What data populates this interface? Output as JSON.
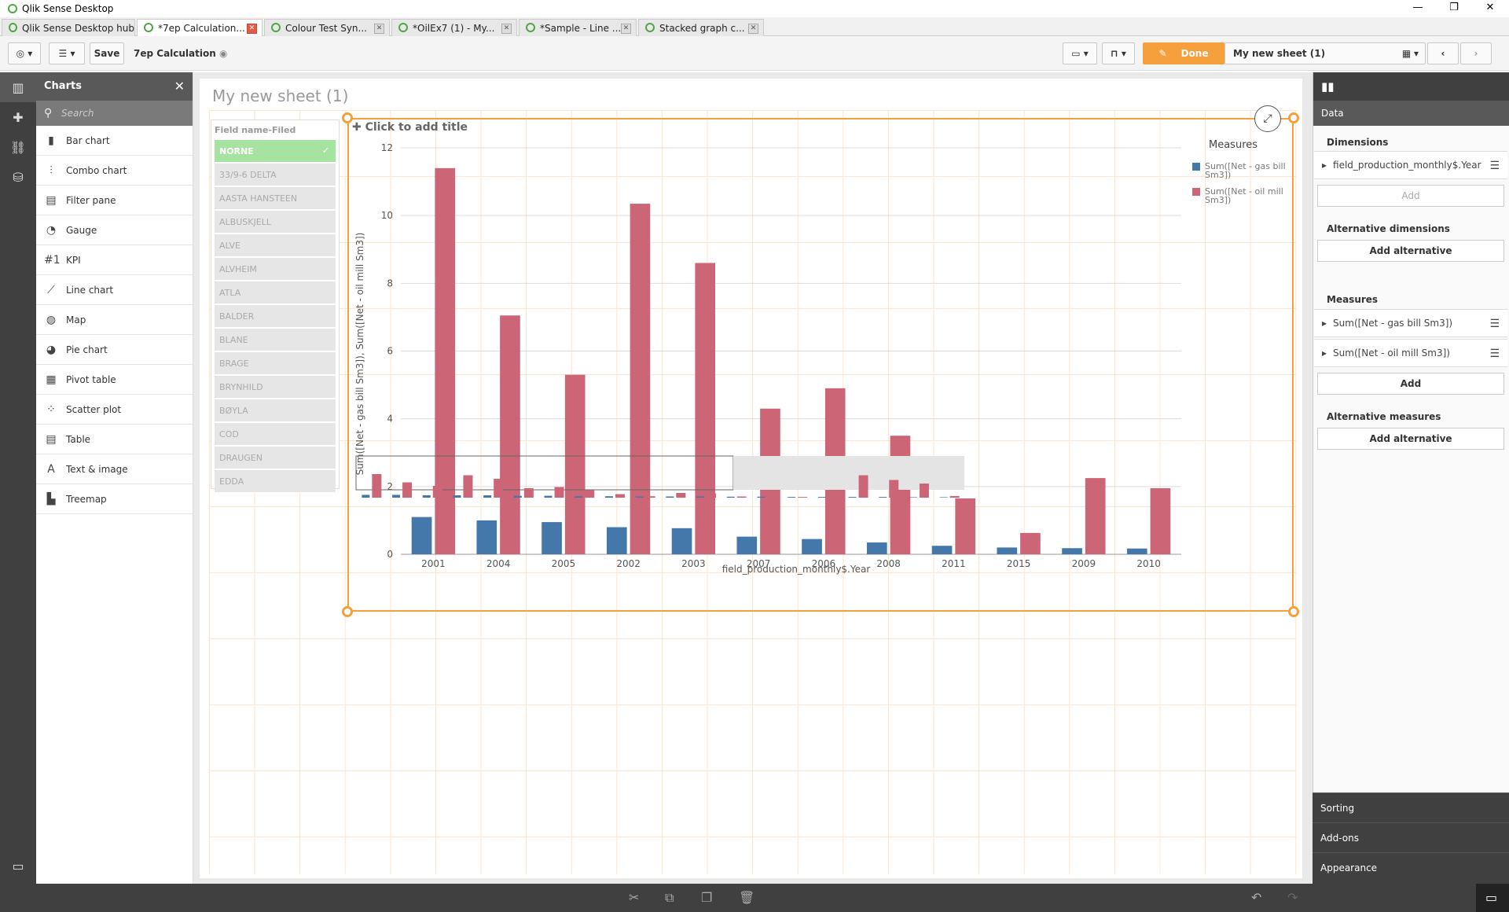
{
  "window": {
    "title": "Qlik Sense Desktop",
    "minimize": "—",
    "maximize": "❐",
    "close": "✕"
  },
  "tabs": [
    {
      "label": "Qlik Sense Desktop hub",
      "close": "✕"
    },
    {
      "label": "*7ep Calculation...",
      "close": "✕"
    },
    {
      "label": "Colour Test Syn...",
      "close": "✕"
    },
    {
      "label": "*OilEx7 (1) - My...",
      "close": "✕"
    },
    {
      "label": "*Sample - Line ...",
      "close": "✕"
    },
    {
      "label": "Stacked graph c...",
      "close": "✕"
    }
  ],
  "toolbar": {
    "save_label": "Save",
    "app_name": "7ep Calculation",
    "done_label": "Done",
    "sheet_name": "My new sheet (1)"
  },
  "assets": {
    "title": "Charts",
    "search_placeholder": "Search",
    "items": [
      {
        "label": "Bar chart",
        "icon": "bar-chart-icon"
      },
      {
        "label": "Combo chart",
        "icon": "combo-chart-icon"
      },
      {
        "label": "Filter pane",
        "icon": "filter-pane-icon"
      },
      {
        "label": "Gauge",
        "icon": "gauge-icon"
      },
      {
        "label": "KPI",
        "icon": "kpi-icon"
      },
      {
        "label": "Line chart",
        "icon": "line-chart-icon"
      },
      {
        "label": "Map",
        "icon": "map-icon"
      },
      {
        "label": "Pie chart",
        "icon": "pie-chart-icon"
      },
      {
        "label": "Pivot table",
        "icon": "pivot-table-icon"
      },
      {
        "label": "Scatter plot",
        "icon": "scatter-plot-icon"
      },
      {
        "label": "Table",
        "icon": "table-icon"
      },
      {
        "label": "Text & image",
        "icon": "text-image-icon"
      },
      {
        "label": "Treemap",
        "icon": "treemap-icon"
      }
    ]
  },
  "sheet": {
    "title": "My new sheet (1)"
  },
  "filter_pane": {
    "header": "Field name-Filed",
    "items": [
      "NORNE",
      "33/9-6 DELTA",
      "AASTA HANSTEEN",
      "ALBUSKJELL",
      "ALVE",
      "ALVHEIM",
      "ATLA",
      "BALDER",
      "BLANE",
      "BRAGE",
      "BRYNHILD",
      "BØYLA",
      "COD",
      "DRAUGEN",
      "EDDA"
    ],
    "selected": "NORNE"
  },
  "chart_placeholder_title": "Click to add title",
  "chart_data": {
    "type": "bar",
    "categories": [
      "2001",
      "2004",
      "2005",
      "2002",
      "2003",
      "2007",
      "2006",
      "2008",
      "2011",
      "2015",
      "2009",
      "2010"
    ],
    "series": [
      {
        "name": "Sum([Net - gas bill Sm3])",
        "color": "#4477aa",
        "values": [
          1.1,
          1.0,
          0.95,
          0.8,
          0.77,
          0.52,
          0.45,
          0.35,
          0.25,
          0.2,
          0.18,
          0.17
        ]
      },
      {
        "name": "Sum([Net - oil mill Sm3])",
        "color": "#cc6677",
        "values": [
          11.4,
          7.05,
          5.3,
          10.35,
          8.6,
          4.3,
          4.9,
          3.5,
          1.65,
          0.63,
          2.25,
          1.95
        ]
      }
    ],
    "legend_title": "Measures",
    "legend_labels": [
      [
        "Sum([Net - gas bill",
        "Sm3])"
      ],
      [
        "Sum([Net - oil mill",
        "Sm3])"
      ]
    ],
    "xlabel": "field_production_monthly$.Year",
    "ylabel": "Sum([Net - gas bill Sm3]), Sum([Net - oil mill Sm3])",
    "yticks": [
      "0",
      "2",
      "4",
      "6",
      "8",
      "10",
      "12"
    ],
    "ylim": [
      0,
      12
    ],
    "grid": true,
    "legend_position": "right",
    "mini_chart": {
      "gas": [
        0.12,
        0.12,
        0.1,
        0.1,
        0.1,
        0.08,
        0.08,
        0.06,
        0.06,
        0.05,
        0.05,
        0.05,
        0.04,
        0.04,
        0.03,
        0.03,
        0.03,
        0.03,
        0.02,
        0.02
      ],
      "oil": [
        1.0,
        0.65,
        0.5,
        0.95,
        0.8,
        0.4,
        0.45,
        0.32,
        0.15,
        0.06,
        0.2,
        0.18,
        0.05,
        0.05,
        0.03,
        0.02,
        0.95,
        0.75,
        0.6,
        0.07
      ]
    }
  },
  "right_panel": {
    "data_tab": "Data",
    "dimensions_title": "Dimensions",
    "dimension": "field_production_monthly$.Year",
    "add_label": "Add",
    "alt_dimensions_title": "Alternative dimensions",
    "add_alternative_label": "Add alternative",
    "measures_title": "Measures",
    "measures": [
      "Sum([Net - gas bill Sm3])",
      "Sum([Net - oil mill Sm3])"
    ],
    "alt_measures_title": "Alternative measures",
    "sorting": "Sorting",
    "addons": "Add-ons",
    "appearance": "Appearance"
  }
}
